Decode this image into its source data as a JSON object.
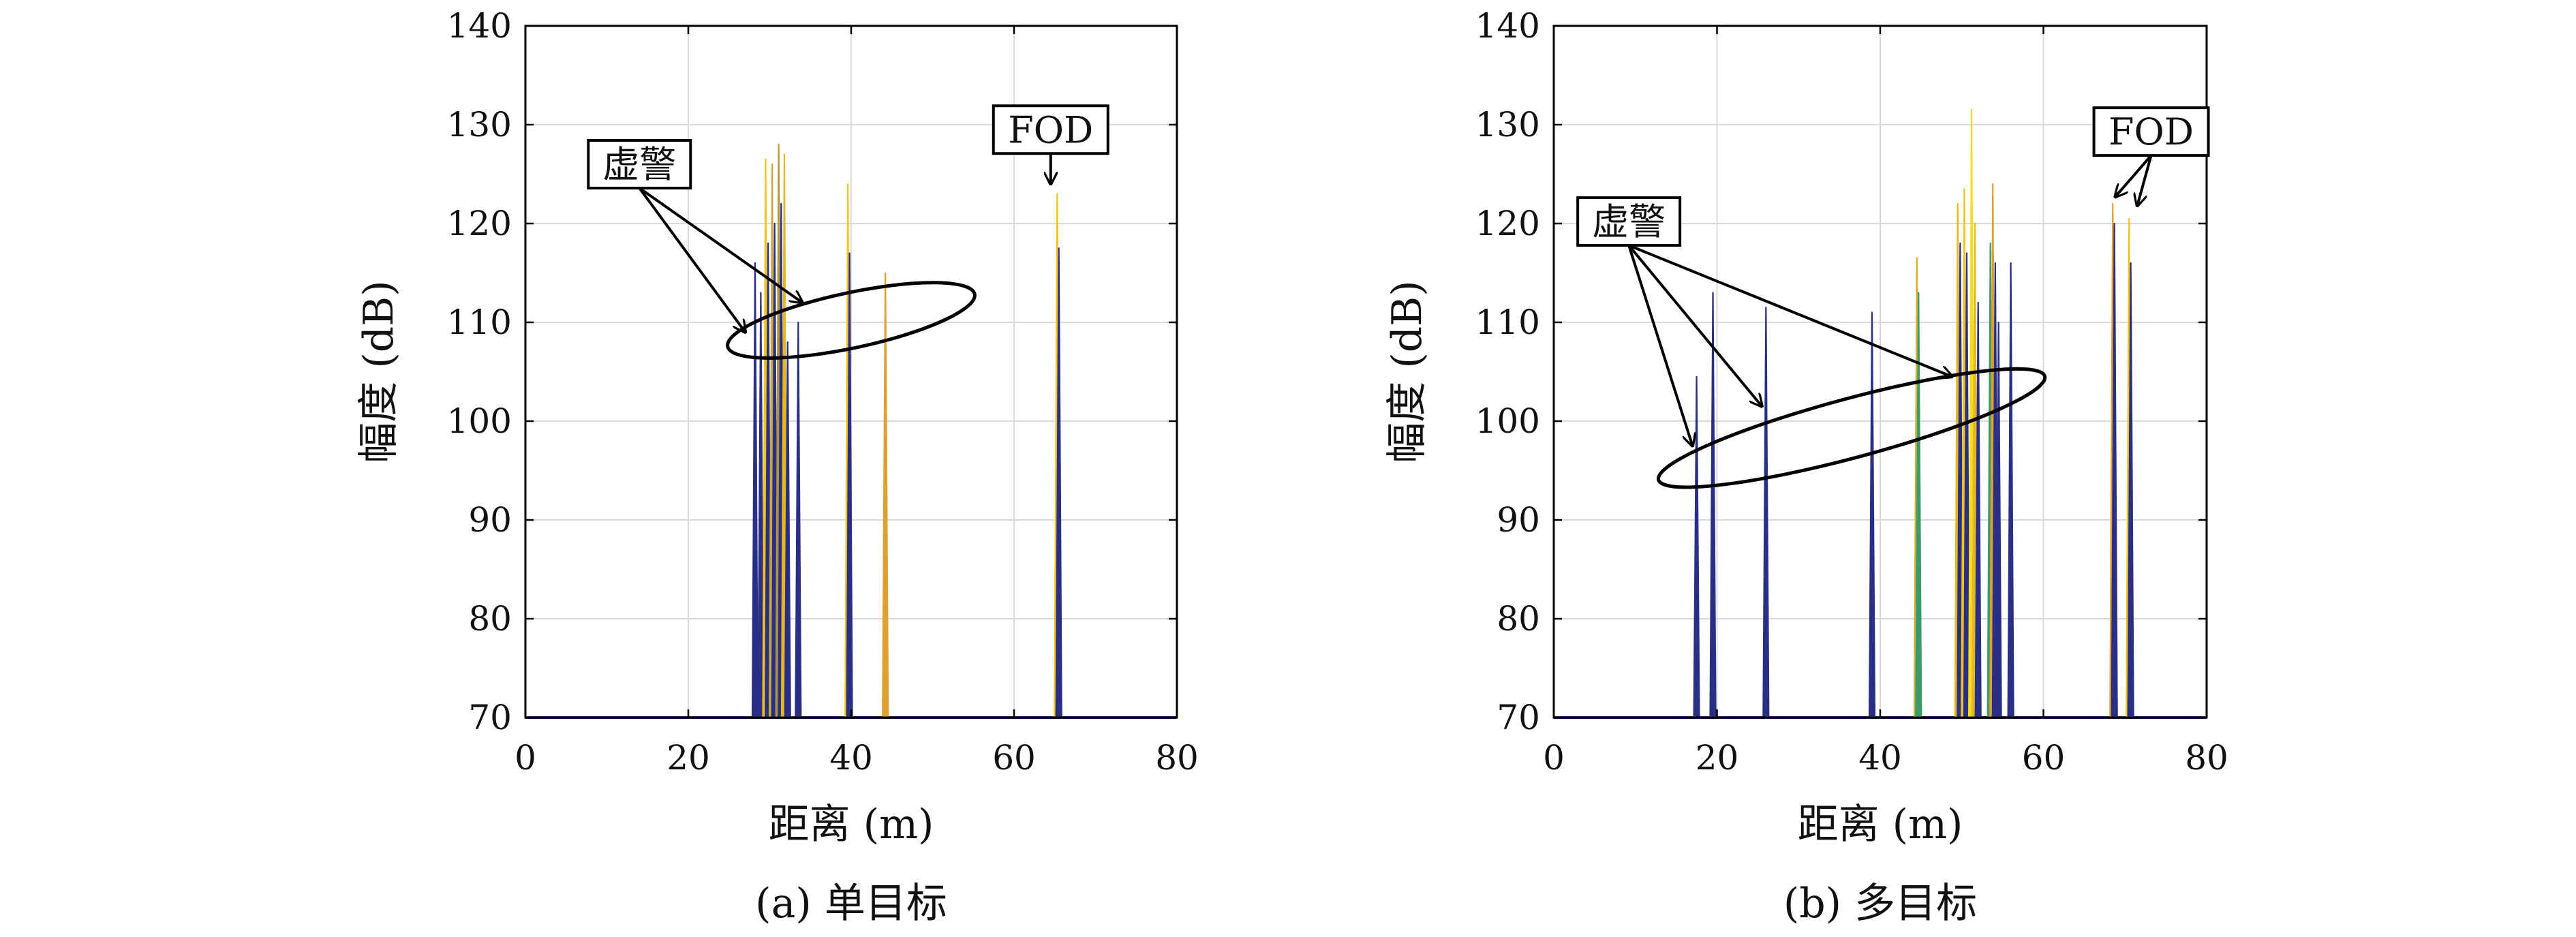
{
  "chart_data": [
    {
      "type": "line",
      "caption": "(a) 单目标",
      "xlabel": "距离 (m)",
      "ylabel": "幅度 (dB)",
      "xlim": [
        0,
        80
      ],
      "ylim": [
        70,
        140
      ],
      "xticks": [
        0,
        20,
        40,
        60,
        80
      ],
      "yticks": [
        70,
        80,
        90,
        100,
        110,
        120,
        130,
        140
      ],
      "grid": true,
      "baseline": 70,
      "peaks": [
        {
          "x": 28.2,
          "y": 116,
          "color": "#2a2f86"
        },
        {
          "x": 28.9,
          "y": 113,
          "color": "#2a2f86"
        },
        {
          "x": 29.5,
          "y": 126.5,
          "color": "#f2c419"
        },
        {
          "x": 29.8,
          "y": 118,
          "color": "#2a2f86"
        },
        {
          "x": 30.3,
          "y": 126,
          "color": "#c9a93a"
        },
        {
          "x": 30.6,
          "y": 120,
          "color": "#2a2f86"
        },
        {
          "x": 31.1,
          "y": 128,
          "color": "#b0963a"
        },
        {
          "x": 31.4,
          "y": 122,
          "color": "#2a2f86"
        },
        {
          "x": 31.8,
          "y": 127,
          "color": "#e6b820"
        },
        {
          "x": 32.2,
          "y": 108,
          "color": "#2a2f86"
        },
        {
          "x": 33.5,
          "y": 110,
          "color": "#2a2f86"
        },
        {
          "x": 39.6,
          "y": 124,
          "color": "#f2c419"
        },
        {
          "x": 39.8,
          "y": 117,
          "color": "#2a2f86"
        },
        {
          "x": 44.2,
          "y": 115,
          "color": "#e0a030"
        },
        {
          "x": 65.3,
          "y": 123,
          "color": "#f2c419"
        },
        {
          "x": 65.5,
          "y": 117.5,
          "color": "#2a2f86"
        }
      ],
      "annotations": [
        {
          "label": "虚警",
          "box": [
            14,
            126
          ],
          "arrows": [
            [
              27,
              109
            ],
            [
              34,
              112
            ]
          ],
          "ellipse": {
            "cx": 40,
            "cy": 110.2,
            "rx": 15.5,
            "ry": 2.8,
            "angle": -12
          }
        },
        {
          "label": "FOD",
          "box": [
            64.5,
            129.5
          ],
          "arrows": [
            [
              64.5,
              124
            ]
          ]
        }
      ]
    },
    {
      "type": "line",
      "caption": "(b) 多目标",
      "xlabel": "距离 (m)",
      "ylabel": "幅度 (dB)",
      "xlim": [
        0,
        80
      ],
      "ylim": [
        70,
        140
      ],
      "xticks": [
        0,
        20,
        40,
        60,
        80
      ],
      "yticks": [
        70,
        80,
        90,
        100,
        110,
        120,
        130,
        140
      ],
      "grid": true,
      "baseline": 70,
      "peaks": [
        {
          "x": 17.5,
          "y": 104.5,
          "color": "#2a2f86"
        },
        {
          "x": 19.5,
          "y": 113,
          "color": "#2a2f86"
        },
        {
          "x": 26.0,
          "y": 111.5,
          "color": "#2a2f86"
        },
        {
          "x": 39.0,
          "y": 111,
          "color": "#2a2f86"
        },
        {
          "x": 44.5,
          "y": 116.5,
          "color": "#d8b030"
        },
        {
          "x": 44.7,
          "y": 113,
          "color": "#3a9a6a"
        },
        {
          "x": 49.5,
          "y": 122,
          "color": "#e6b820"
        },
        {
          "x": 49.8,
          "y": 118,
          "color": "#2a2f86"
        },
        {
          "x": 50.3,
          "y": 123.5,
          "color": "#f2c419"
        },
        {
          "x": 50.6,
          "y": 117,
          "color": "#2a2f86"
        },
        {
          "x": 51.2,
          "y": 131.5,
          "color": "#f5dc20"
        },
        {
          "x": 51.6,
          "y": 120,
          "color": "#e6b820"
        },
        {
          "x": 52.0,
          "y": 112,
          "color": "#2a2f86"
        },
        {
          "x": 53.5,
          "y": 118,
          "color": "#3a9a6a"
        },
        {
          "x": 53.8,
          "y": 124,
          "color": "#e0a030"
        },
        {
          "x": 54.1,
          "y": 116,
          "color": "#2a2f86"
        },
        {
          "x": 54.5,
          "y": 110,
          "color": "#2a2f86"
        },
        {
          "x": 56.0,
          "y": 116,
          "color": "#2a2f86"
        },
        {
          "x": 68.5,
          "y": 122,
          "color": "#e0a030"
        },
        {
          "x": 68.7,
          "y": 120,
          "color": "#2a2f86"
        },
        {
          "x": 70.5,
          "y": 120.5,
          "color": "#f2c419"
        },
        {
          "x": 70.7,
          "y": 116,
          "color": "#2a2f86"
        }
      ],
      "annotations": [
        {
          "label": "虚警",
          "box": [
            9.2,
            120.2
          ],
          "arrows": [
            [
              17,
              97.5
            ],
            [
              25.5,
              101.5
            ],
            [
              48.8,
              104.5
            ]
          ],
          "ellipse": {
            "cx": 36.5,
            "cy": 99.3,
            "rx": 24.5,
            "ry": 3.0,
            "angle": -15
          }
        },
        {
          "label": "FOD",
          "box": [
            73.2,
            129.3
          ],
          "arrows": [
            [
              68.8,
              122.7
            ],
            [
              71.5,
              121.8
            ]
          ]
        }
      ]
    }
  ]
}
